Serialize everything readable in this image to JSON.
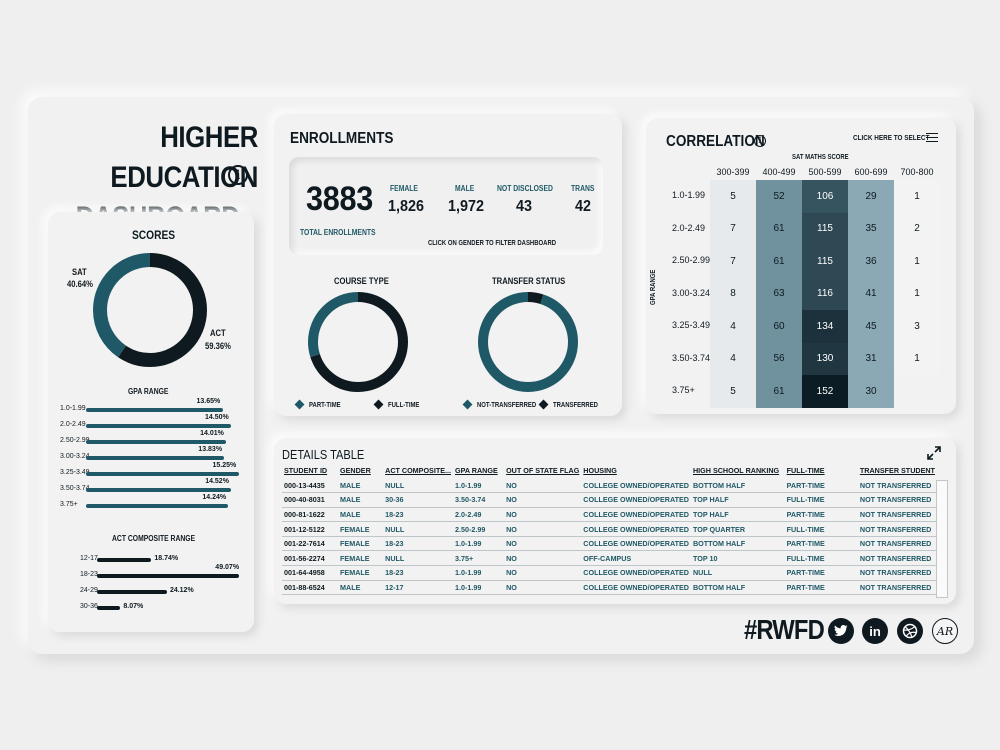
{
  "title_line1": "HIGHER EDUCATION",
  "title_line2": "DASHBOARD",
  "scores": {
    "title": "SCORES",
    "sat_label": "SAT",
    "sat_pct": "40.64%",
    "act_label": "ACT",
    "act_pct": "59.36%",
    "sat_value": 40.64,
    "act_value": 59.36
  },
  "gpa_range": {
    "title": "GPA RANGE",
    "rows": [
      {
        "label": "1.0-1.99",
        "pct": "13.65%",
        "value": 13.65
      },
      {
        "label": "2.0-2.49",
        "pct": "14.50%",
        "value": 14.5
      },
      {
        "label": "2.50-2.99",
        "pct": "14.01%",
        "value": 14.01
      },
      {
        "label": "3.00-3.24",
        "pct": "13.83%",
        "value": 13.83
      },
      {
        "label": "3.25-3.49",
        "pct": "15.25%",
        "value": 15.25
      },
      {
        "label": "3.50-3.74",
        "pct": "14.52%",
        "value": 14.52
      },
      {
        "label": "3.75+",
        "pct": "14.24%",
        "value": 14.24
      }
    ]
  },
  "act_range": {
    "title": "ACT COMPOSITE RANGE",
    "rows": [
      {
        "label": "12-17",
        "pct": "18.74%",
        "value": 18.74
      },
      {
        "label": "18-23",
        "pct": "49.07%",
        "value": 49.07
      },
      {
        "label": "24-29",
        "pct": "24.12%",
        "value": 24.12
      },
      {
        "label": "30-36",
        "pct": "8.07%",
        "value": 8.07
      }
    ]
  },
  "enrollments": {
    "title": "ENROLLMENTS",
    "total": "3883",
    "total_label": "TOTAL ENROLLMENTS",
    "female_label": "FEMALE",
    "female": "1,826",
    "male_label": "MALE",
    "male": "1,972",
    "nd_label": "NOT DISCLOSED",
    "nd": "43",
    "trans_label": "TRANS",
    "trans": "42",
    "hint": "CLICK ON GENDER TO FILTER DASHBOARD",
    "course_type": {
      "title": "COURSE TYPE",
      "legend1": "PART-TIME",
      "legend2": "FULL-TIME",
      "part_time_share": 0.3
    },
    "transfer": {
      "title": "TRANSFER STATUS",
      "legend1": "NOT-TRANSFERRED",
      "legend2": "TRANSFERRED",
      "transferred_share": 0.05
    }
  },
  "correlation": {
    "title": "CORRELATION",
    "select_label": "CLICK HERE TO SELECT",
    "x_title": "SAT MATHS SCORE",
    "y_title": "GPA RANGE",
    "cols": [
      "300-399",
      "400-499",
      "500-599",
      "600-699",
      "700-800"
    ],
    "rows": [
      {
        "label": "1.0-1.99",
        "values": [
          "5",
          "52",
          "106",
          "29",
          "1"
        ]
      },
      {
        "label": "2.0-2.49",
        "values": [
          "7",
          "61",
          "115",
          "35",
          "2"
        ]
      },
      {
        "label": "2.50-2.99",
        "values": [
          "7",
          "61",
          "115",
          "36",
          "1"
        ]
      },
      {
        "label": "3.00-3.24",
        "values": [
          "8",
          "63",
          "116",
          "41",
          "1"
        ]
      },
      {
        "label": "3.25-3.49",
        "values": [
          "4",
          "60",
          "134",
          "45",
          "3"
        ]
      },
      {
        "label": "3.50-3.74",
        "values": [
          "4",
          "56",
          "130",
          "31",
          "1"
        ]
      },
      {
        "label": "3.75+",
        "values": [
          "5",
          "61",
          "152",
          "30",
          ""
        ]
      }
    ]
  },
  "details": {
    "title": "DETAILS TABLE",
    "headers": [
      "STUDENT ID",
      "GENDER",
      "ACT COMPOSITE...",
      "GPA RANGE",
      "OUT OF STATE FLAG",
      "HOUSING",
      "HIGH SCHOOL RANKING",
      "FULL-TIME",
      "TRANSFER STUDENT"
    ],
    "rows": [
      [
        "000-13-4435",
        "MALE",
        "NULL",
        "1.0-1.99",
        "NO",
        "COLLEGE OWNED/OPERATED",
        "BOTTOM HALF",
        "PART-TIME",
        "NOT TRANSFERRED"
      ],
      [
        "000-40-8031",
        "MALE",
        "30-36",
        "3.50-3.74",
        "NO",
        "COLLEGE OWNED/OPERATED",
        "TOP HALF",
        "FULL-TIME",
        "NOT TRANSFERRED"
      ],
      [
        "000-81-1622",
        "MALE",
        "18-23",
        "2.0-2.49",
        "NO",
        "COLLEGE OWNED/OPERATED",
        "TOP HALF",
        "PART-TIME",
        "NOT TRANSFERRED"
      ],
      [
        "001-12-5122",
        "FEMALE",
        "NULL",
        "2.50-2.99",
        "NO",
        "COLLEGE OWNED/OPERATED",
        "TOP QUARTER",
        "FULL-TIME",
        "NOT TRANSFERRED"
      ],
      [
        "001-22-7614",
        "FEMALE",
        "18-23",
        "1.0-1.99",
        "NO",
        "COLLEGE OWNED/OPERATED",
        "BOTTOM HALF",
        "PART-TIME",
        "NOT TRANSFERRED"
      ],
      [
        "001-56-2274",
        "FEMALE",
        "NULL",
        "3.75+",
        "NO",
        "OFF-CAMPUS",
        "TOP 10",
        "FULL-TIME",
        "NOT TRANSFERRED"
      ],
      [
        "001-64-4958",
        "FEMALE",
        "18-23",
        "1.0-1.99",
        "NO",
        "COLLEGE OWNED/OPERATED",
        "NULL",
        "PART-TIME",
        "NOT TRANSFERRED"
      ],
      [
        "001-88-6524",
        "MALE",
        "12-17",
        "1.0-1.99",
        "NO",
        "COLLEGE OWNED/OPERATED",
        "BOTTOM HALF",
        "PART-TIME",
        "NOT TRANSFERRED"
      ]
    ]
  },
  "footer": {
    "hashtag": "#RWFD",
    "icons": [
      "twitter-icon",
      "linkedin-icon",
      "dribbble-icon",
      "ar-logo-icon"
    ]
  },
  "colors": {
    "dark": "#0e1a20",
    "teal": "#1f5866"
  }
}
